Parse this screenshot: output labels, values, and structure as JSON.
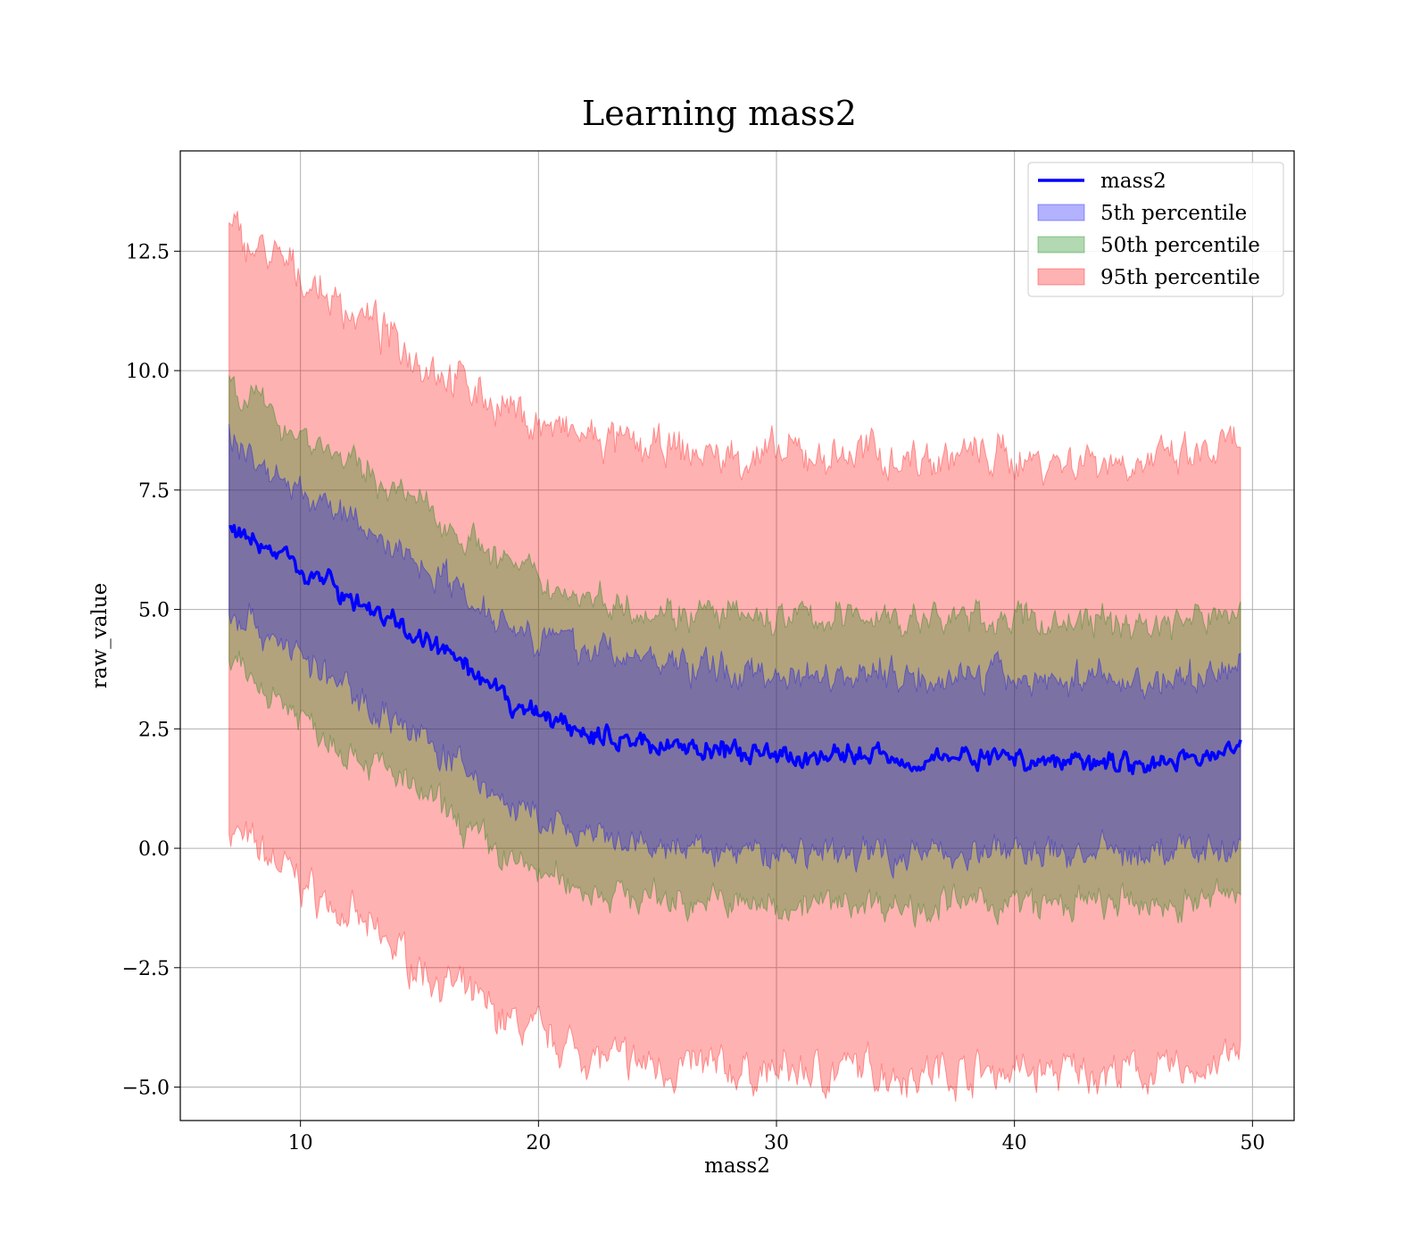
{
  "chart_data": {
    "type": "line",
    "title": "Learning mass2",
    "xlabel": "mass2",
    "ylabel": "raw_value",
    "xlim": [
      4.95,
      51.75
    ],
    "ylim": [
      -5.7,
      14.6
    ],
    "xticks": [
      10,
      20,
      30,
      40,
      50
    ],
    "yticks": [
      -5.0,
      -2.5,
      0.0,
      2.5,
      5.0,
      7.5,
      10.0,
      12.5
    ],
    "xtick_labels": [
      "10",
      "20",
      "30",
      "40",
      "50"
    ],
    "ytick_labels": [
      "−5.0",
      "−2.5",
      "0.0",
      "2.5",
      "5.0",
      "7.5",
      "10.0",
      "12.5"
    ],
    "grid": true,
    "legend_position": "top-right",
    "x": [
      7,
      8,
      9,
      10,
      11,
      12,
      13,
      14,
      15,
      16,
      17,
      18,
      19,
      20,
      21,
      22,
      23,
      24,
      25,
      26,
      27,
      28,
      29,
      30,
      31,
      32,
      33,
      34,
      35,
      36,
      37,
      38,
      39,
      40,
      41,
      42,
      43,
      44,
      45,
      46,
      47,
      48,
      49,
      49.5
    ],
    "series": [
      {
        "name": "mass2",
        "kind": "line",
        "color": "#0000ff",
        "values": [
          6.8,
          6.4,
          6.2,
          5.9,
          5.6,
          5.3,
          5.0,
          4.7,
          4.4,
          4.1,
          3.7,
          3.3,
          3.0,
          2.8,
          2.6,
          2.4,
          2.3,
          2.25,
          2.2,
          2.15,
          2.1,
          2.0,
          1.95,
          1.9,
          1.95,
          1.9,
          1.95,
          2.0,
          1.9,
          1.85,
          1.9,
          1.95,
          1.9,
          1.9,
          1.85,
          1.8,
          1.9,
          1.85,
          1.8,
          1.8,
          1.85,
          1.9,
          2.1,
          2.1
        ]
      },
      {
        "name": "5th percentile",
        "kind": "band",
        "color": "#0000ff",
        "lower": [
          5.0,
          4.7,
          4.4,
          4.0,
          3.6,
          3.3,
          3.0,
          2.7,
          2.3,
          2.0,
          1.6,
          1.2,
          0.8,
          0.6,
          0.4,
          0.2,
          0.1,
          0.0,
          0.0,
          -0.05,
          -0.05,
          -0.1,
          -0.1,
          -0.1,
          -0.05,
          -0.1,
          -0.1,
          -0.05,
          -0.1,
          -0.1,
          -0.05,
          -0.1,
          -0.05,
          -0.1,
          -0.1,
          -0.1,
          -0.05,
          -0.1,
          -0.1,
          -0.1,
          -0.05,
          0.0,
          0.0,
          0.0
        ],
        "upper": [
          8.6,
          8.2,
          7.8,
          7.5,
          7.2,
          6.9,
          6.6,
          6.3,
          6.0,
          5.7,
          5.3,
          5.0,
          4.7,
          4.5,
          4.3,
          4.2,
          4.1,
          4.0,
          3.9,
          3.85,
          3.8,
          3.7,
          3.7,
          3.65,
          3.7,
          3.65,
          3.7,
          3.7,
          3.65,
          3.6,
          3.6,
          3.65,
          3.6,
          3.6,
          3.55,
          3.5,
          3.6,
          3.55,
          3.5,
          3.5,
          3.55,
          3.6,
          3.8,
          3.8
        ]
      },
      {
        "name": "50th percentile",
        "kind": "band",
        "color": "#008000",
        "lower": [
          3.8,
          3.5,
          3.2,
          2.8,
          2.4,
          2.1,
          1.8,
          1.5,
          1.1,
          0.8,
          0.4,
          0.0,
          -0.3,
          -0.5,
          -0.7,
          -0.85,
          -0.95,
          -1.0,
          -1.05,
          -1.1,
          -1.1,
          -1.15,
          -1.2,
          -1.2,
          -1.15,
          -1.2,
          -1.15,
          -1.1,
          -1.2,
          -1.2,
          -1.15,
          -1.2,
          -1.15,
          -1.15,
          -1.2,
          -1.2,
          -1.15,
          -1.2,
          -1.2,
          -1.2,
          -1.15,
          -1.1,
          -0.95,
          -0.9
        ]
      }
    ],
    "extra_band_data": {
      "50th_upper": [
        9.8,
        9.4,
        9.0,
        8.7,
        8.4,
        8.1,
        7.8,
        7.5,
        7.2,
        6.9,
        6.5,
        6.2,
        5.9,
        5.6,
        5.4,
        5.3,
        5.2,
        5.1,
        5.0,
        4.95,
        4.9,
        4.85,
        4.8,
        4.8,
        4.85,
        4.8,
        4.85,
        4.9,
        4.8,
        4.75,
        4.8,
        4.85,
        4.8,
        4.8,
        4.75,
        4.7,
        4.8,
        4.75,
        4.7,
        4.7,
        4.75,
        4.8,
        5.0,
        5.0
      ],
      "95th_lower": [
        0.4,
        0.0,
        -0.3,
        -0.7,
        -1.1,
        -1.4,
        -1.8,
        -2.1,
        -2.5,
        -2.8,
        -3.1,
        -3.4,
        -3.7,
        -3.9,
        -4.1,
        -4.3,
        -4.45,
        -4.5,
        -4.55,
        -4.6,
        -4.6,
        -4.65,
        -4.7,
        -4.7,
        -4.65,
        -4.7,
        -4.65,
        -4.6,
        -4.7,
        -4.7,
        -4.65,
        -4.7,
        -4.65,
        -4.65,
        -4.7,
        -4.7,
        -4.65,
        -4.7,
        -4.7,
        -4.7,
        -4.65,
        -4.6,
        -4.4,
        -4.3
      ],
      "95th_upper": [
        13.0,
        12.6,
        12.3,
        12.0,
        11.6,
        11.3,
        11.0,
        10.6,
        10.3,
        10.0,
        9.7,
        9.4,
        9.1,
        8.9,
        8.7,
        8.6,
        8.5,
        8.4,
        8.35,
        8.3,
        8.25,
        8.2,
        8.2,
        8.2,
        8.25,
        8.2,
        8.25,
        8.3,
        8.2,
        8.15,
        8.2,
        8.25,
        8.2,
        8.2,
        8.15,
        8.1,
        8.2,
        8.15,
        8.1,
        8.1,
        8.15,
        8.2,
        8.4,
        8.4
      ]
    },
    "legend": [
      {
        "label": "mass2",
        "kind": "line",
        "color": "#0000ff"
      },
      {
        "label": "5th percentile",
        "kind": "patch",
        "color": "#0000ff"
      },
      {
        "label": "50th percentile",
        "kind": "patch",
        "color": "#008000"
      },
      {
        "label": "95th percentile",
        "kind": "patch",
        "color": "#ff0000"
      }
    ]
  }
}
